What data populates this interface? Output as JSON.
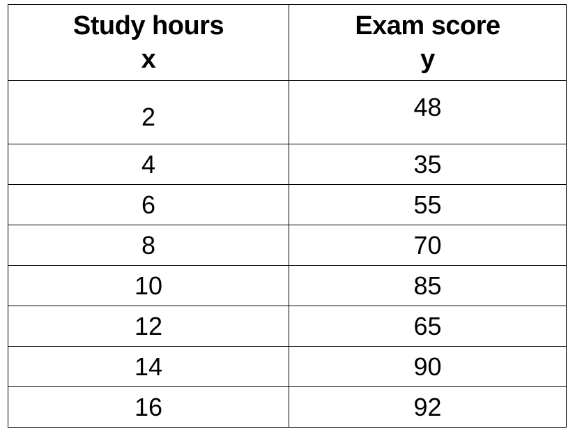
{
  "table": {
    "headers": [
      {
        "title": "Study hours",
        "symbol": "x"
      },
      {
        "title": "Exam score",
        "symbol": "y"
      }
    ],
    "rows": [
      {
        "x": "2",
        "y": "48"
      },
      {
        "x": "4",
        "y": "35"
      },
      {
        "x": "6",
        "y": "55"
      },
      {
        "x": "8",
        "y": "70"
      },
      {
        "x": "10",
        "y": "85"
      },
      {
        "x": "12",
        "y": "65"
      },
      {
        "x": "14",
        "y": "90"
      },
      {
        "x": "16",
        "y": "92"
      }
    ]
  }
}
